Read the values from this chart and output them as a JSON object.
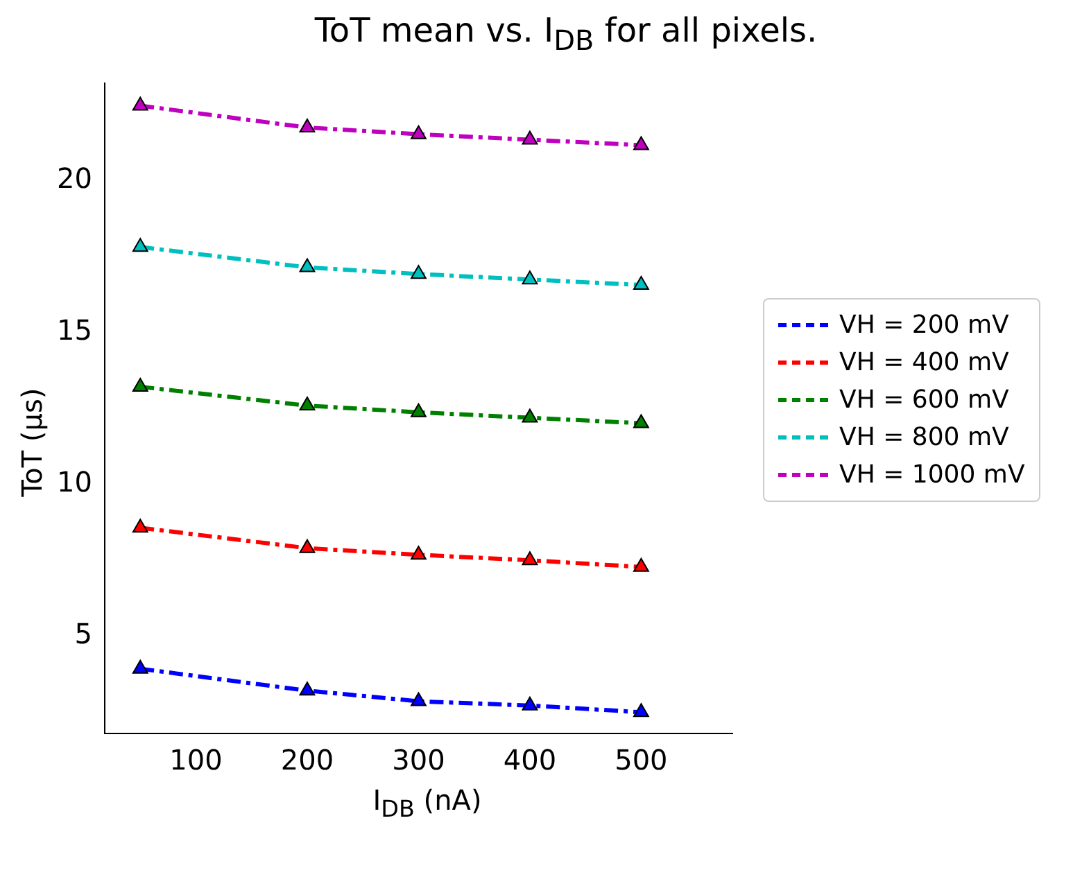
{
  "chart_data": {
    "type": "line",
    "title": "ToT mean vs. I$_{DB}$ for all pixels.",
    "xlabel": "I$_{DB}$ (nA)",
    "ylabel": "ToT (μs)",
    "x": [
      50,
      200,
      300,
      400,
      500
    ],
    "series": [
      {
        "name": "VH = 200 mV",
        "color": "#0000ff",
        "values": [
          3.93,
          3.21,
          2.86,
          2.72,
          2.5
        ]
      },
      {
        "name": "VH = 400 mV",
        "color": "#ff0000",
        "values": [
          8.57,
          7.9,
          7.68,
          7.5,
          7.28
        ]
      },
      {
        "name": "VH = 600 mV",
        "color": "#008000",
        "values": [
          13.21,
          12.59,
          12.37,
          12.19,
          12.01
        ]
      },
      {
        "name": "VH = 800 mV",
        "color": "#00bfbf",
        "values": [
          17.81,
          17.14,
          16.92,
          16.74,
          16.56
        ]
      },
      {
        "name": "VH = 1000 mV",
        "color": "#bf00bf",
        "values": [
          22.46,
          21.74,
          21.52,
          21.34,
          21.16
        ]
      }
    ],
    "xlim": [
      18,
      582
    ],
    "ylim": [
      1.8,
      23.2
    ],
    "xticks": [
      100,
      200,
      300,
      400,
      500
    ],
    "yticks": [
      5,
      10,
      15,
      20
    ],
    "grid": false,
    "legend": "right",
    "marker": "triangle",
    "line_style": "dashed"
  }
}
